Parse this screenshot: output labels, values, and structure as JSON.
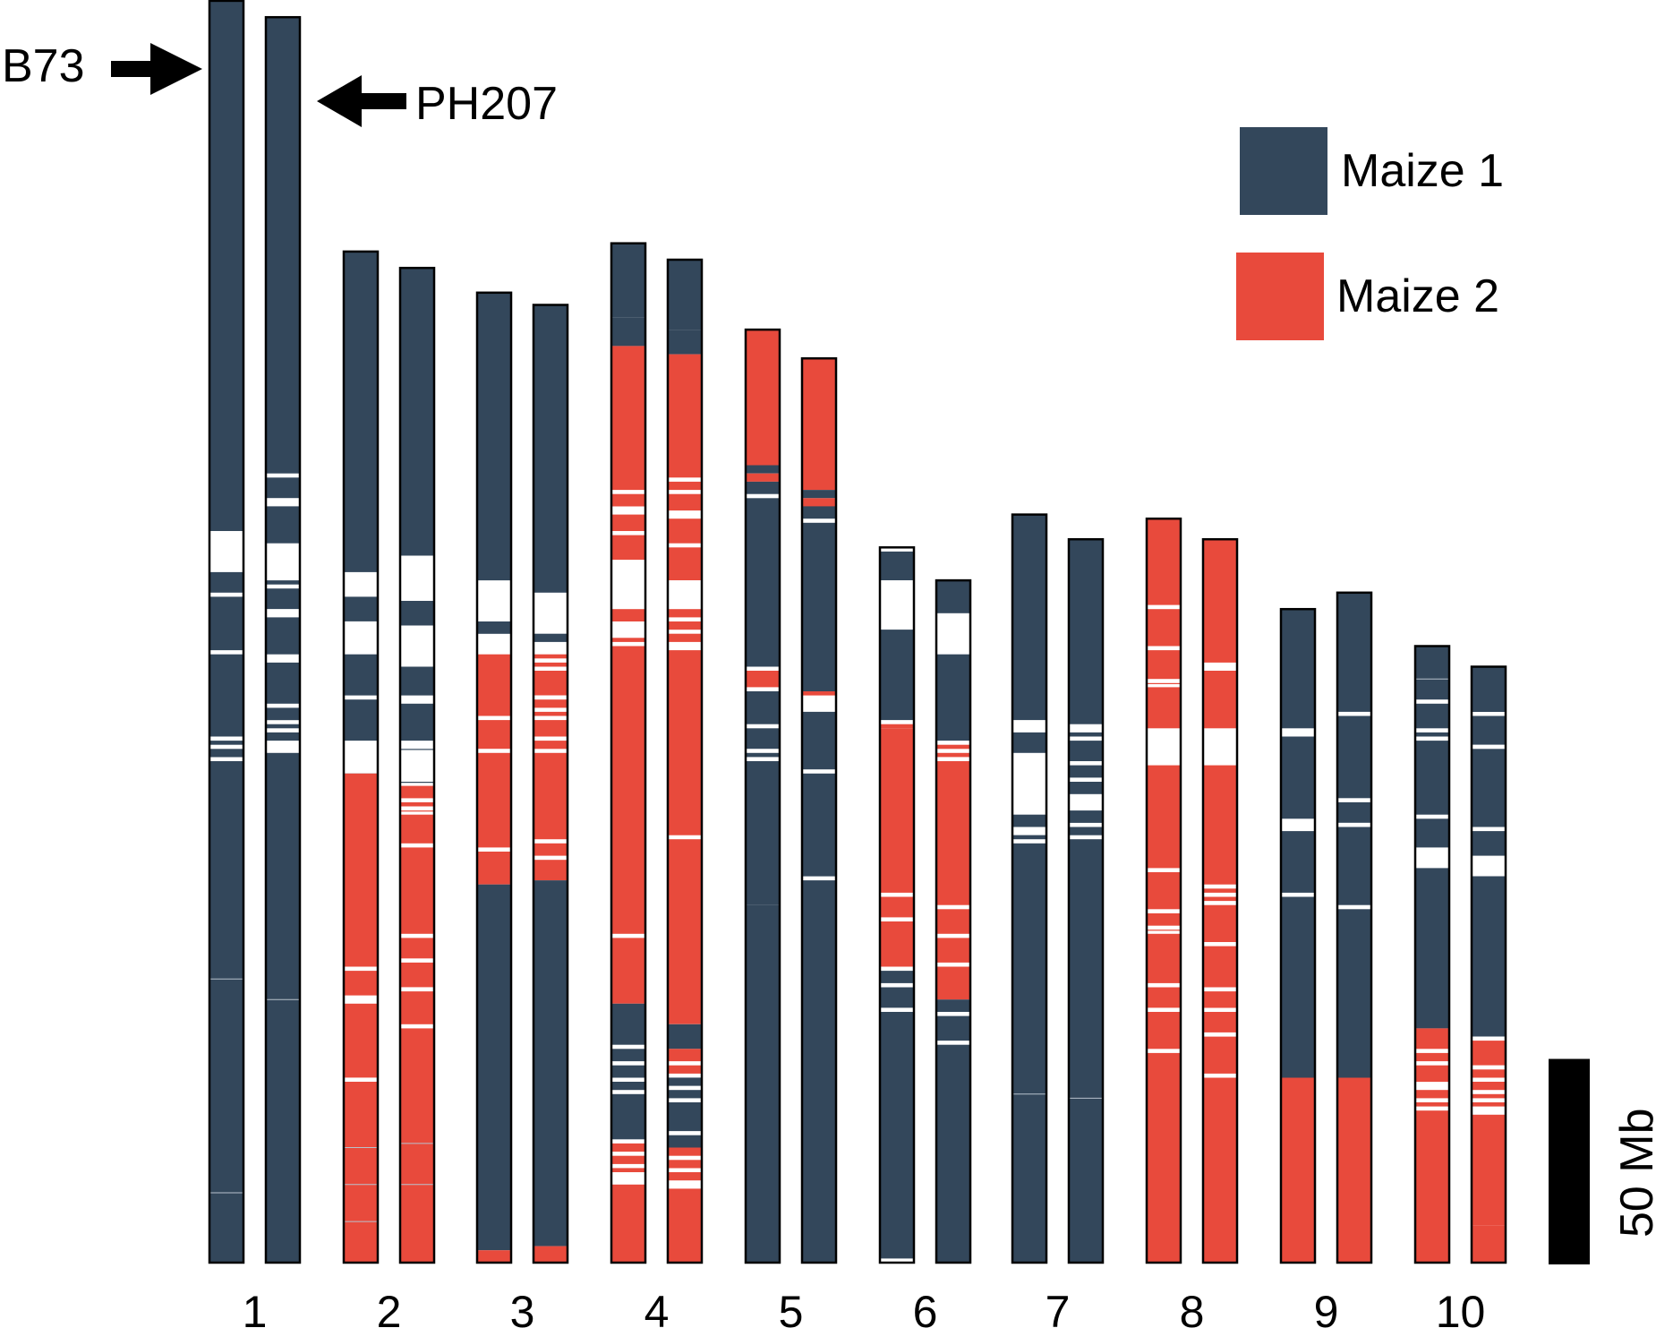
{
  "labels": {
    "b73": "B73",
    "ph207": "PH207",
    "scale": "50 Mb",
    "legend_maize1": "Maize 1",
    "legend_maize2": "Maize 2"
  },
  "colors": {
    "maize1": "#33475b",
    "maize2": "#e84a3c",
    "gap": "#ffffff",
    "outline": "#000000"
  },
  "scale_bar_mb": 50,
  "chromosomes": [
    {
      "number": "1",
      "b73": {
        "length_mb": 307,
        "segments": [
          [
            "m1",
            0,
            129
          ],
          [
            "m1",
            139,
            144
          ],
          [
            "m1",
            145,
            158
          ],
          [
            "m1",
            159,
            179
          ],
          [
            "m1",
            180,
            181
          ],
          [
            "m1",
            182,
            184
          ],
          [
            "m1",
            185,
            307
          ]
        ],
        "ticks": [
          238,
          290
        ]
      },
      "ph207": {
        "length_mb": 303,
        "segments": [
          [
            "m1",
            0,
            111
          ],
          [
            "m1",
            112,
            117
          ],
          [
            "m1",
            119,
            128
          ],
          [
            "m1",
            137,
            138
          ],
          [
            "m1",
            139,
            144
          ],
          [
            "m1",
            146,
            155
          ],
          [
            "m1",
            157,
            167
          ],
          [
            "m1",
            168,
            171
          ],
          [
            "m1",
            172,
            173
          ],
          [
            "m1",
            174,
            176
          ],
          [
            "m1",
            179,
            303
          ]
        ],
        "ticks": [
          239
        ]
      }
    },
    {
      "number": "2",
      "b73": {
        "length_mb": 246,
        "segments": [
          [
            "m1",
            0,
            78
          ],
          [
            "m1",
            84,
            90
          ],
          [
            "m1",
            98,
            108
          ],
          [
            "m1",
            109,
            119
          ],
          [
            "m1",
            127,
            127
          ],
          [
            "m2",
            127,
            174
          ],
          [
            "m2",
            175,
            181
          ],
          [
            "m2",
            183,
            201
          ],
          [
            "m2",
            202,
            246
          ]
        ],
        "ticks": [
          218,
          227,
          236
        ]
      },
      "ph207": {
        "length_mb": 242,
        "segments": [
          [
            "m1",
            0,
            70
          ],
          [
            "m1",
            81,
            87
          ],
          [
            "m1",
            97,
            104
          ],
          [
            "m1",
            106,
            115
          ],
          [
            "m1",
            117,
            117
          ],
          [
            "m1",
            125,
            125
          ],
          [
            "m2",
            126,
            129
          ],
          [
            "m2",
            130,
            131
          ],
          [
            "m2",
            132,
            132
          ],
          [
            "m2",
            133,
            140
          ],
          [
            "m2",
            141,
            162
          ],
          [
            "m2",
            163,
            168
          ],
          [
            "m2",
            169,
            175
          ],
          [
            "m2",
            176,
            184
          ],
          [
            "m2",
            185,
            242
          ]
        ],
        "ticks": [
          213,
          223
        ]
      }
    },
    {
      "number": "3",
      "b73": {
        "length_mb": 236,
        "segments": [
          [
            "m1",
            0,
            70
          ],
          [
            "m1",
            80,
            83
          ],
          [
            "m2",
            88,
            103
          ],
          [
            "m2",
            104,
            111
          ],
          [
            "m2",
            112,
            135
          ],
          [
            "m2",
            136,
            144
          ],
          [
            "m1",
            144,
            233
          ],
          [
            "m2",
            233,
            236
          ]
        ],
        "ticks": []
      },
      "ph207": {
        "length_mb": 233,
        "segments": [
          [
            "m1",
            0,
            70
          ],
          [
            "m1",
            80,
            82
          ],
          [
            "m2",
            85,
            86
          ],
          [
            "m2",
            87,
            88
          ],
          [
            "m2",
            89,
            95
          ],
          [
            "m2",
            96,
            98
          ],
          [
            "m2",
            99,
            100
          ],
          [
            "m2",
            101,
            105
          ],
          [
            "m2",
            106,
            108
          ],
          [
            "m2",
            109,
            130
          ],
          [
            "m2",
            131,
            134
          ],
          [
            "m2",
            135,
            140
          ],
          [
            "m1",
            140,
            229
          ],
          [
            "m2",
            229,
            233
          ]
        ],
        "ticks": []
      }
    },
    {
      "number": "4",
      "b73": {
        "length_mb": 248,
        "segments": [
          [
            "m1",
            0,
            18
          ],
          [
            "m1",
            18,
            25
          ],
          [
            "m2",
            25,
            60
          ],
          [
            "m2",
            61,
            64
          ],
          [
            "m2",
            66,
            70
          ],
          [
            "m2",
            71,
            77
          ],
          [
            "m2",
            89,
            92
          ],
          [
            "m2",
            96,
            97
          ],
          [
            "m2",
            98,
            168
          ],
          [
            "m2",
            169,
            185
          ],
          [
            "m1",
            185,
            195
          ],
          [
            "m1",
            196,
            199
          ],
          [
            "m1",
            200,
            203
          ],
          [
            "m1",
            204,
            206
          ],
          [
            "m1",
            207,
            218
          ],
          [
            "m2",
            219,
            221
          ],
          [
            "m2",
            222,
            224
          ],
          [
            "m2",
            225,
            226
          ],
          [
            "m2",
            229,
            248
          ]
        ],
        "ticks": []
      },
      "ph207": {
        "length_mb": 244,
        "segments": [
          [
            "m1",
            0,
            17
          ],
          [
            "m1",
            17,
            23
          ],
          [
            "m2",
            23,
            53
          ],
          [
            "m2",
            54,
            56
          ],
          [
            "m2",
            57,
            61
          ],
          [
            "m2",
            63,
            69
          ],
          [
            "m2",
            70,
            78
          ],
          [
            "m2",
            85,
            87
          ],
          [
            "m2",
            88,
            90
          ],
          [
            "m2",
            91,
            93
          ],
          [
            "m2",
            95,
            105
          ],
          [
            "m2",
            105,
            140
          ],
          [
            "m2",
            141,
            186
          ],
          [
            "m1",
            186,
            192
          ],
          [
            "m2",
            192,
            195
          ],
          [
            "m2",
            196,
            198
          ],
          [
            "m1",
            199,
            201
          ],
          [
            "m1",
            202,
            204
          ],
          [
            "m1",
            205,
            212
          ],
          [
            "m1",
            213,
            216
          ],
          [
            "m2",
            216,
            218
          ],
          [
            "m2",
            219,
            221
          ],
          [
            "m2",
            222,
            224
          ],
          [
            "m2",
            226,
            244
          ]
        ],
        "ticks": []
      }
    },
    {
      "number": "5",
      "b73": {
        "length_mb": 227,
        "segments": [
          [
            "m2",
            0,
            21
          ],
          [
            "m2",
            21,
            33
          ],
          [
            "m1",
            33,
            35
          ],
          [
            "m2",
            35,
            37
          ],
          [
            "m1",
            37,
            40
          ],
          [
            "m1",
            41,
            82
          ],
          [
            "m2",
            83,
            87
          ],
          [
            "m1",
            88,
            96
          ],
          [
            "m1",
            97,
            102
          ],
          [
            "m1",
            103,
            104
          ],
          [
            "m1",
            105,
            140
          ],
          [
            "m1",
            140,
            227
          ]
        ],
        "ticks": []
      },
      "ph207": {
        "length_mb": 220,
        "segments": [
          [
            "m2",
            0,
            32
          ],
          [
            "m1",
            32,
            34
          ],
          [
            "m2",
            34,
            36
          ],
          [
            "m1",
            36,
            39
          ],
          [
            "m1",
            40,
            81
          ],
          [
            "m2",
            81,
            82
          ],
          [
            "m1",
            86,
            100
          ],
          [
            "m1",
            101,
            126
          ],
          [
            "m1",
            127,
            220
          ]
        ],
        "ticks": []
      }
    },
    {
      "number": "6",
      "b73": {
        "length_mb": 174,
        "segments": [
          [
            "m1",
            1,
            8
          ],
          [
            "m1",
            20,
            42
          ],
          [
            "m2",
            43,
            44
          ],
          [
            "m2",
            44,
            84
          ],
          [
            "m2",
            85,
            90
          ],
          [
            "m2",
            91,
            102
          ],
          [
            "m1",
            103,
            106
          ],
          [
            "m1",
            107,
            112
          ],
          [
            "m1",
            113,
            173
          ]
        ],
        "ticks": []
      },
      "ph207": {
        "length_mb": 166,
        "segments": [
          [
            "m1",
            0,
            8
          ],
          [
            "m1",
            18,
            39
          ],
          [
            "m2",
            40,
            41
          ],
          [
            "m2",
            42,
            43
          ],
          [
            "m2",
            44,
            79
          ],
          [
            "m2",
            80,
            86
          ],
          [
            "m2",
            87,
            93
          ],
          [
            "m2",
            94,
            102
          ],
          [
            "m1",
            102,
            105
          ],
          [
            "m1",
            106,
            112
          ],
          [
            "m1",
            113,
            166
          ]
        ],
        "ticks": []
      }
    },
    {
      "number": "7",
      "b73": {
        "length_mb": 182,
        "segments": [
          [
            "m1",
            0,
            50
          ],
          [
            "m1",
            53,
            58
          ],
          [
            "m1",
            73,
            76
          ],
          [
            "m1",
            78,
            79
          ],
          [
            "m1",
            80,
            182
          ]
        ],
        "ticks": [
          141
        ]
      },
      "ph207": {
        "length_mb": 176,
        "segments": [
          [
            "m1",
            0,
            45
          ],
          [
            "m1",
            47,
            48
          ],
          [
            "m1",
            49,
            54
          ],
          [
            "m1",
            55,
            58
          ],
          [
            "m1",
            59,
            62
          ],
          [
            "m1",
            66,
            69
          ],
          [
            "m1",
            70,
            72
          ],
          [
            "m1",
            73,
            176
          ]
        ],
        "ticks": [
          136
        ]
      }
    },
    {
      "number": "8",
      "b73": {
        "length_mb": 181,
        "segments": [
          [
            "m2",
            0,
            21
          ],
          [
            "m2",
            22,
            31
          ],
          [
            "m2",
            32,
            39
          ],
          [
            "m2",
            40,
            40
          ],
          [
            "m2",
            41,
            51
          ],
          [
            "m2",
            60,
            85
          ],
          [
            "m2",
            86,
            95
          ],
          [
            "m2",
            96,
            99
          ],
          [
            "m2",
            100,
            100
          ],
          [
            "m2",
            101,
            113
          ],
          [
            "m2",
            114,
            119
          ],
          [
            "m2",
            120,
            129
          ],
          [
            "m2",
            130,
            181
          ]
        ],
        "ticks": []
      },
      "ph207": {
        "length_mb": 176,
        "segments": [
          [
            "m2",
            0,
            30
          ],
          [
            "m2",
            32,
            46
          ],
          [
            "m2",
            55,
            84
          ],
          [
            "m2",
            85,
            86
          ],
          [
            "m2",
            87,
            88
          ],
          [
            "m2",
            89,
            98
          ],
          [
            "m2",
            99,
            109
          ],
          [
            "m2",
            110,
            114
          ],
          [
            "m2",
            115,
            120
          ],
          [
            "m2",
            121,
            130
          ],
          [
            "m2",
            131,
            176
          ]
        ],
        "ticks": []
      }
    },
    {
      "number": "9",
      "b73": {
        "length_mb": 159,
        "segments": [
          [
            "m1",
            0,
            29
          ],
          [
            "m1",
            31,
            51
          ],
          [
            "m1",
            54,
            69
          ],
          [
            "m1",
            70,
            114
          ],
          [
            "m2",
            114,
            159
          ]
        ],
        "ticks": []
      },
      "ph207": {
        "length_mb": 163,
        "segments": [
          [
            "m1",
            0,
            13
          ],
          [
            "m1",
            13,
            29
          ],
          [
            "m1",
            30,
            50
          ],
          [
            "m1",
            51,
            56
          ],
          [
            "m1",
            57,
            76
          ],
          [
            "m1",
            77,
            118
          ],
          [
            "m2",
            118,
            163
          ]
        ],
        "ticks": []
      }
    },
    {
      "number": "10",
      "b73": {
        "length_mb": 150,
        "segments": [
          [
            "m1",
            0,
            13
          ],
          [
            "m1",
            14,
            20
          ],
          [
            "m1",
            21,
            22
          ],
          [
            "m1",
            23,
            41
          ],
          [
            "m1",
            42,
            49
          ],
          [
            "m1",
            54,
            93
          ],
          [
            "m2",
            93,
            98
          ],
          [
            "m2",
            99,
            101
          ],
          [
            "m2",
            102,
            106
          ],
          [
            "m2",
            108,
            110
          ],
          [
            "m2",
            111,
            112
          ],
          [
            "m2",
            113,
            150
          ]
        ],
        "ticks": [
          8
        ]
      },
      "ph207": {
        "length_mb": 145,
        "segments": [
          [
            "m1",
            0,
            11
          ],
          [
            "m1",
            12,
            19
          ],
          [
            "m1",
            20,
            39
          ],
          [
            "m1",
            40,
            46
          ],
          [
            "m1",
            51,
            90
          ],
          [
            "m2",
            91,
            97
          ],
          [
            "m2",
            98,
            100
          ],
          [
            "m2",
            101,
            103
          ],
          [
            "m2",
            104,
            105
          ],
          [
            "m2",
            106,
            107
          ],
          [
            "m2",
            109,
            136
          ],
          [
            "m2",
            136,
            145
          ]
        ],
        "ticks": []
      }
    }
  ]
}
